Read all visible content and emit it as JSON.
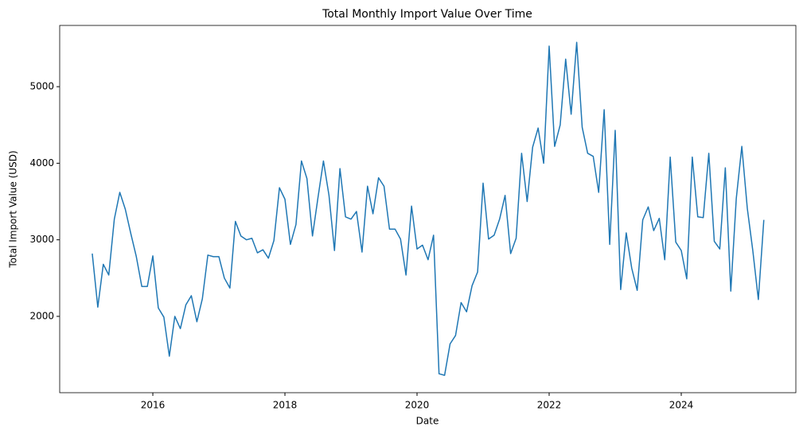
{
  "chart_data": {
    "type": "line",
    "title": "Total Monthly Import Value Over Time",
    "x_label": "Date",
    "y_label": "Total Import Value (USD)",
    "x": [
      2015.083,
      2015.167,
      2015.25,
      2015.333,
      2015.417,
      2015.5,
      2015.583,
      2015.667,
      2015.75,
      2015.833,
      2015.917,
      2016,
      2016.083,
      2016.167,
      2016.25,
      2016.333,
      2016.417,
      2016.5,
      2016.583,
      2016.667,
      2016.75,
      2016.833,
      2016.917,
      2017,
      2017.083,
      2017.167,
      2017.25,
      2017.333,
      2017.417,
      2017.5,
      2017.583,
      2017.667,
      2017.75,
      2017.833,
      2017.917,
      2018,
      2018.083,
      2018.167,
      2018.25,
      2018.333,
      2018.417,
      2018.5,
      2018.583,
      2018.667,
      2018.75,
      2018.833,
      2018.917,
      2019,
      2019.083,
      2019.167,
      2019.25,
      2019.333,
      2019.417,
      2019.5,
      2019.583,
      2019.667,
      2019.75,
      2019.833,
      2019.917,
      2020,
      2020.083,
      2020.167,
      2020.25,
      2020.333,
      2020.417,
      2020.5,
      2020.583,
      2020.667,
      2020.75,
      2020.833,
      2020.917,
      2021,
      2021.083,
      2021.167,
      2021.25,
      2021.333,
      2021.417,
      2021.5,
      2021.583,
      2021.667,
      2021.75,
      2021.833,
      2021.917,
      2022,
      2022.083,
      2022.167,
      2022.25,
      2022.333,
      2022.417,
      2022.5,
      2022.583,
      2022.667,
      2022.75,
      2022.833,
      2022.917,
      2023,
      2023.083,
      2023.167,
      2023.25,
      2023.333,
      2023.417,
      2023.5,
      2023.583,
      2023.667,
      2023.75,
      2023.833,
      2023.917,
      2024,
      2024.083,
      2024.167,
      2024.25,
      2024.333,
      2024.417,
      2024.5,
      2024.583,
      2024.667,
      2024.75,
      2024.833,
      2024.917,
      2025,
      2025.083,
      2025.167,
      2025.25
    ],
    "series": [
      {
        "name": "Total Import Value",
        "color": "#1f77b4",
        "values": [
          2820,
          2120,
          2680,
          2540,
          3270,
          3620,
          3400,
          3080,
          2780,
          2390,
          2390,
          2790,
          2110,
          1990,
          1480,
          2000,
          1840,
          2150,
          2270,
          1930,
          2230,
          2800,
          2780,
          2780,
          2500,
          2370,
          3240,
          3050,
          3000,
          3020,
          2830,
          2870,
          2760,
          2990,
          3680,
          3530,
          2940,
          3200,
          4030,
          3800,
          3050,
          3550,
          4030,
          3580,
          2860,
          3930,
          3300,
          3270,
          3370,
          2840,
          3700,
          3340,
          3810,
          3700,
          3140,
          3140,
          3010,
          2540,
          3440,
          2880,
          2930,
          2740,
          3060,
          1250,
          1230,
          1640,
          1750,
          2180,
          2060,
          2400,
          2580,
          3740,
          3010,
          3060,
          3270,
          3580,
          2820,
          3020,
          4130,
          3500,
          4210,
          4460,
          4000,
          5530,
          4220,
          4500,
          5360,
          4640,
          5580,
          4470,
          4130,
          4090,
          3620,
          4700,
          2940,
          4430,
          2350,
          3090,
          2630,
          2340,
          3260,
          3430,
          3120,
          3280,
          2740,
          4080,
          2970,
          2860,
          2490,
          4080,
          3300,
          3290,
          4130,
          2980,
          2880,
          3940,
          2330,
          3540,
          4220,
          3410,
          2860,
          2220,
          3260
        ]
      }
    ],
    "xlim": [
      2014.59,
      2025.735
    ],
    "xticks": [
      2016,
      2018,
      2020,
      2022,
      2024
    ],
    "ylim": [
      1003,
      5800
    ],
    "yticks": [
      2000,
      3000,
      4000,
      5000
    ]
  }
}
